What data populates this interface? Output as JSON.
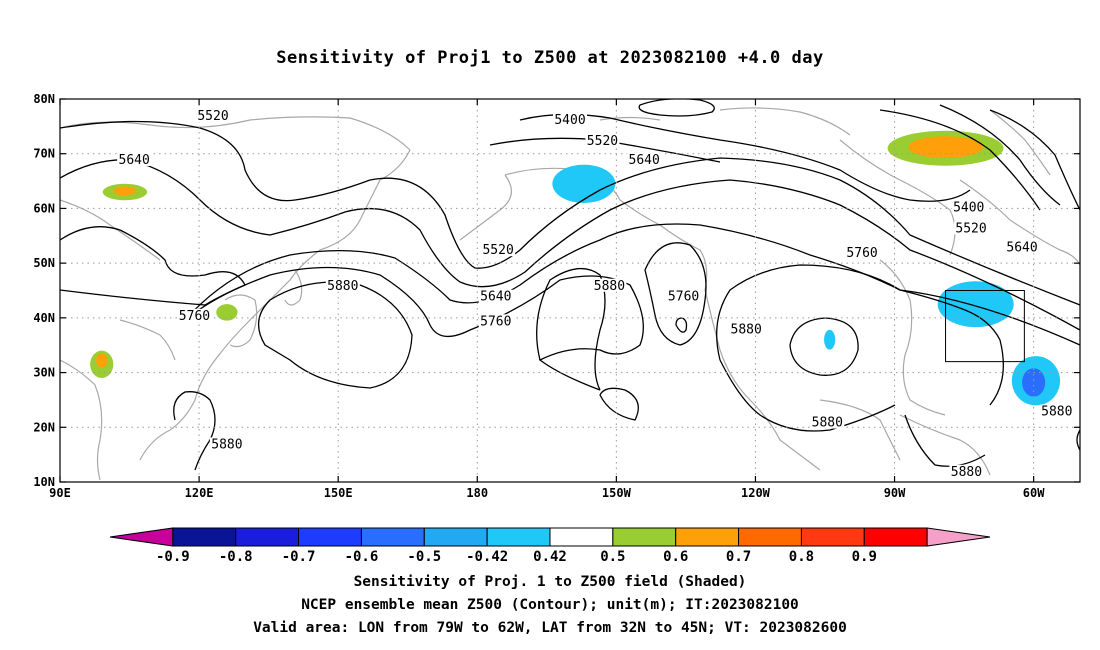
{
  "title": "Sensitivity of Proj1 to Z500 at 2023082100 +4.0 day",
  "captions": [
    "Sensitivity of Proj. 1 to Z500 field (Shaded)",
    "NCEP ensemble mean Z500 (Contour); unit(m); IT:2023082100",
    "Valid area: LON from 79W to 62W, LAT from 32N to 45N; VT: 2023082600"
  ],
  "axes": {
    "lon_range": [
      90,
      310
    ],
    "lat_range": [
      10,
      80
    ],
    "x_ticks": [
      {
        "lon": 90,
        "label": "90E"
      },
      {
        "lon": 120,
        "label": "120E"
      },
      {
        "lon": 150,
        "label": "150E"
      },
      {
        "lon": 180,
        "label": "180"
      },
      {
        "lon": 210,
        "label": "150W"
      },
      {
        "lon": 240,
        "label": "120W"
      },
      {
        "lon": 270,
        "label": "90W"
      },
      {
        "lon": 300,
        "label": "60W"
      }
    ],
    "y_ticks": [
      {
        "lat": 10,
        "label": "10N"
      },
      {
        "lat": 20,
        "label": "20N"
      },
      {
        "lat": 30,
        "label": "30N"
      },
      {
        "lat": 40,
        "label": "40N"
      },
      {
        "lat": 50,
        "label": "50N"
      },
      {
        "lat": 60,
        "label": "60N"
      },
      {
        "lat": 70,
        "label": "70N"
      },
      {
        "lat": 80,
        "label": "80N"
      }
    ],
    "grid": true
  },
  "valid_area": {
    "lon": [
      281,
      298
    ],
    "lat": [
      32,
      45
    ]
  },
  "colorbar": {
    "labels": [
      "-0.9",
      "-0.8",
      "-0.7",
      "-0.6",
      "-0.5",
      "-0.42",
      "0.42",
      "0.5",
      "0.6",
      "0.7",
      "0.8",
      "0.9"
    ],
    "colors": [
      "#c8009c",
      "#0a1496",
      "#1a1edc",
      "#1e3cff",
      "#2a6eff",
      "#23a8f2",
      "#20c8f8",
      "#ffffff",
      "#9acd32",
      "#ff9f0a",
      "#ff6a00",
      "#ff3a10",
      "#ff0000",
      "#f4a0c8"
    ]
  },
  "contour_labels": [
    {
      "text": "5520",
      "lon": 123,
      "lat": 76.5
    },
    {
      "text": "5640",
      "lon": 106,
      "lat": 68.5
    },
    {
      "text": "5400",
      "lon": 200,
      "lat": 75.8
    },
    {
      "text": "5520",
      "lon": 207,
      "lat": 72
    },
    {
      "text": "5640",
      "lon": 216,
      "lat": 68.5
    },
    {
      "text": "5520",
      "lon": 184.5,
      "lat": 52
    },
    {
      "text": "5880",
      "lon": 151,
      "lat": 45.5
    },
    {
      "text": "5760",
      "lon": 119,
      "lat": 40
    },
    {
      "text": "5640",
      "lon": 184,
      "lat": 43.5
    },
    {
      "text": "5760",
      "lon": 184,
      "lat": 39
    },
    {
      "text": "5880",
      "lon": 208.5,
      "lat": 45.5
    },
    {
      "text": "5760",
      "lon": 224.5,
      "lat": 43.5
    },
    {
      "text": "5880",
      "lon": 238,
      "lat": 37.5
    },
    {
      "text": "5760",
      "lon": 263,
      "lat": 51.5
    },
    {
      "text": "5400",
      "lon": 286,
      "lat": 59.8
    },
    {
      "text": "5520",
      "lon": 286.5,
      "lat": 56
    },
    {
      "text": "5640",
      "lon": 297.5,
      "lat": 52.5
    },
    {
      "text": "5880",
      "lon": 305,
      "lat": 22.5
    },
    {
      "text": "5880",
      "lon": 255.5,
      "lat": 20.5
    },
    {
      "text": "5880",
      "lon": 126,
      "lat": 16.5
    },
    {
      "text": "5880",
      "lon": 285.5,
      "lat": 11.5
    }
  ],
  "shaded_areas": [
    {
      "name": "positive-area-arctic-canada",
      "fill": "#9acd32",
      "lon": 281,
      "lat": 71,
      "rx": 12.5,
      "ry": 3.2
    },
    {
      "name": "positive-core-arctic-canada",
      "fill": "#ff9f0a",
      "lon": 281,
      "lat": 71.2,
      "rx": 8,
      "ry": 2
    },
    {
      "name": "positive-area-siberia",
      "fill": "#9acd32",
      "lon": 104,
      "lat": 63,
      "rx": 4.8,
      "ry": 1.5
    },
    {
      "name": "positive-core-siberia",
      "fill": "#ff9f0a",
      "lon": 104,
      "lat": 63.2,
      "rx": 2.5,
      "ry": 0.8
    },
    {
      "name": "positive-area-korea",
      "fill": "#9acd32",
      "lon": 126,
      "lat": 41,
      "rx": 2.3,
      "ry": 1.5
    },
    {
      "name": "positive-area-south-china",
      "fill": "#9acd32",
      "lon": 99,
      "lat": 31.5,
      "rx": 2.5,
      "ry": 2.5
    },
    {
      "name": "positive-core-south-china",
      "fill": "#ff9f0a",
      "lon": 99,
      "lat": 32.2,
      "rx": 1.2,
      "ry": 1.3
    },
    {
      "name": "negative-area-alaska",
      "fill": "#20c8f8",
      "lon": 203,
      "lat": 64.5,
      "rx": 6.8,
      "ry": 3.5
    },
    {
      "name": "negative-area-great-lakes",
      "fill": "#20c8f8",
      "lon": 287.5,
      "lat": 42.5,
      "rx": 8.2,
      "ry": 4.2
    },
    {
      "name": "negative-area-atlantic",
      "fill": "#20c8f8",
      "lon": 300.5,
      "lat": 28.5,
      "rx": 5.2,
      "ry": 4.5
    },
    {
      "name": "negative-core-atlantic",
      "fill": "#2a6eff",
      "lon": 300,
      "lat": 28.2,
      "rx": 2.5,
      "ry": 2.6
    },
    {
      "name": "negative-area-pacific",
      "fill": "#20c8f8",
      "lon": 256,
      "lat": 36,
      "rx": 1.2,
      "ry": 1.8
    }
  ]
}
